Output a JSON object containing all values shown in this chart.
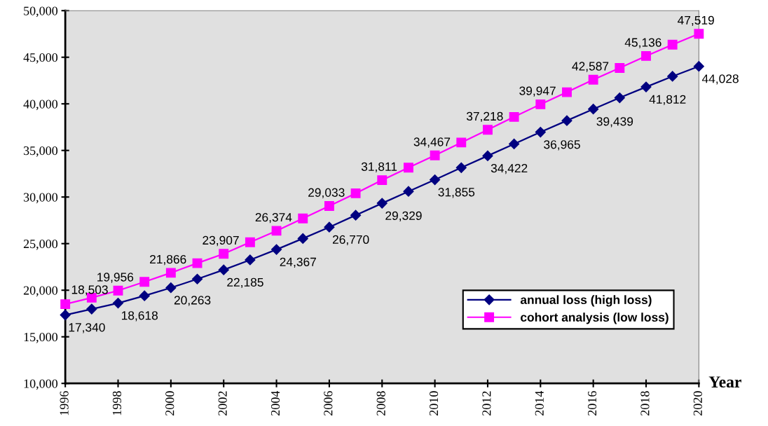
{
  "chart_data": {
    "type": "line",
    "xlabel": "Year",
    "x": [
      1996,
      1997,
      1998,
      1999,
      2000,
      2001,
      2002,
      2003,
      2004,
      2005,
      2006,
      2007,
      2008,
      2009,
      2010,
      2011,
      2012,
      2013,
      2014,
      2015,
      2016,
      2017,
      2018,
      2019,
      2020
    ],
    "series": [
      {
        "name": "annual loss (high loss)",
        "color": "#000080",
        "marker": "diamond",
        "values": [
          17340,
          17980,
          18618,
          19400,
          20263,
          21200,
          22185,
          23250,
          24367,
          25550,
          26770,
          28050,
          29329,
          30600,
          31855,
          33150,
          34422,
          35700,
          36965,
          38200,
          39439,
          40650,
          41812,
          42950,
          44028
        ],
        "value_labels": [
          "17,340",
          null,
          "18,618",
          null,
          "20,263",
          null,
          "22,185",
          null,
          "24,367",
          null,
          "26,770",
          null,
          "29,329",
          null,
          "31,855",
          null,
          "34,422",
          null,
          "36,965",
          null,
          "39,439",
          null,
          "41,812",
          null,
          "44,028"
        ]
      },
      {
        "name": "cohort analysis (low loss)",
        "color": "#ff00ff",
        "marker": "square",
        "values": [
          18503,
          19200,
          19956,
          20900,
          21866,
          22900,
          23907,
          25150,
          26374,
          27700,
          29033,
          30400,
          31811,
          33150,
          34467,
          35850,
          37218,
          38600,
          39947,
          41250,
          42587,
          43850,
          45136,
          46350,
          47519
        ],
        "value_labels": [
          "18,503",
          null,
          "19,956",
          null,
          "21,866",
          null,
          "23,907",
          null,
          "26,374",
          null,
          "29,033",
          null,
          "31,811",
          null,
          "34,467",
          null,
          "37,218",
          null,
          "39,947",
          null,
          "42,587",
          null,
          "45,136",
          null,
          "47,519"
        ]
      }
    ],
    "xlim": [
      1996,
      2020
    ],
    "xticks": [
      1996,
      1998,
      2000,
      2002,
      2004,
      2006,
      2008,
      2010,
      2012,
      2014,
      2016,
      2018,
      2020
    ],
    "ylim": [
      10000,
      50000
    ],
    "yticks": [
      {
        "value": 10000,
        "label": "10,000"
      },
      {
        "value": 15000,
        "label": "15,000"
      },
      {
        "value": 20000,
        "label": "20,000"
      },
      {
        "value": 25000,
        "label": "25,000"
      },
      {
        "value": 30000,
        "label": "30,000"
      },
      {
        "value": 35000,
        "label": "35,000"
      },
      {
        "value": 40000,
        "label": "40,000"
      },
      {
        "value": 45000,
        "label": "45,000"
      },
      {
        "value": 50000,
        "label": "50,000"
      }
    ],
    "grid": false,
    "legend": "bottom right",
    "line_style": "solid"
  }
}
